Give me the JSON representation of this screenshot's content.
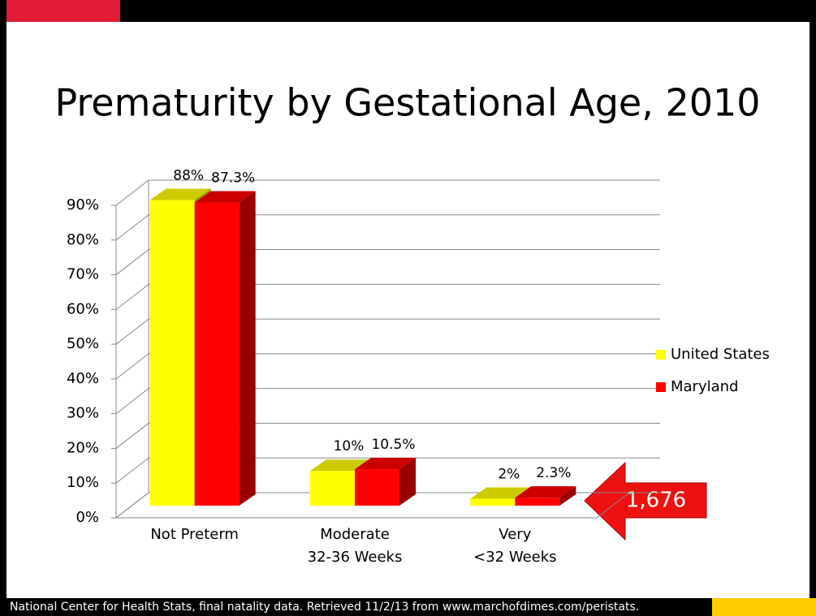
{
  "chart_data": {
    "type": "bar3d",
    "title": "Prematurity by Gestational Age, 2010",
    "categories": [
      "Not Preterm",
      "Moderate\n32-36 Weeks",
      "Very\n<32 Weeks"
    ],
    "series": [
      {
        "name": "United States",
        "color": "#ffff00",
        "values": [
          88,
          10,
          2
        ],
        "value_labels": [
          "88%",
          "10%",
          "2%"
        ]
      },
      {
        "name": "Maryland",
        "color": "#ff0000",
        "values": [
          87.3,
          10.5,
          2.3
        ],
        "value_labels": [
          "87.3%",
          "10.5%",
          "2.3%"
        ]
      }
    ],
    "ylim": [
      0,
      90
    ],
    "yticks": [
      {
        "value": 0,
        "label": "0%"
      },
      {
        "value": 10,
        "label": "10%"
      },
      {
        "value": 20,
        "label": "20%"
      },
      {
        "value": 30,
        "label": "30%"
      },
      {
        "value": 40,
        "label": "40%"
      },
      {
        "value": 50,
        "label": "50%"
      },
      {
        "value": 60,
        "label": "60%"
      },
      {
        "value": 70,
        "label": "70%"
      },
      {
        "value": 80,
        "label": "80%"
      },
      {
        "value": 90,
        "label": "90%"
      }
    ],
    "grid": true,
    "legend": "right",
    "annotation": "1,676",
    "source": "National Center for Health Stats, final natality data. Retrieved 11/2/13 from www.marchofdimes.com/peristats."
  }
}
